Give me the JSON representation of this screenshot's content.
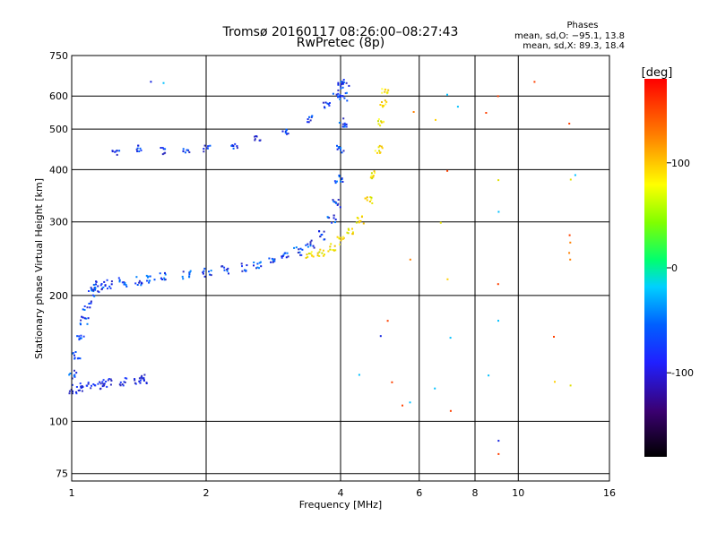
{
  "chart_data": {
    "type": "scatter",
    "title": "Tromsø 20160117 08:26:00–08:27:43",
    "subtitle": "RwPretec (8p)",
    "xlabel": "Frequency [MHz]",
    "ylabel": "Stationary phase Virtual Height [km]",
    "x_scale": "log",
    "y_scale": "log",
    "xlim": [
      1,
      16
    ],
    "ylim": [
      72,
      750
    ],
    "xticks": [
      1,
      2,
      4,
      6,
      8,
      10,
      16
    ],
    "xtick_labels": [
      "1",
      "2",
      "4",
      "6",
      "8",
      "10",
      "16"
    ],
    "yticks": [
      75,
      100,
      200,
      300,
      400,
      500,
      600,
      750
    ],
    "ytick_labels": [
      "75",
      "100",
      "200",
      "300",
      "400",
      "500",
      "600",
      "750"
    ],
    "grid": true,
    "colorbar": {
      "label": "[deg]",
      "range": [
        -180,
        180
      ],
      "ticks": [
        100,
        0,
        -100
      ],
      "tick_labels": [
        "100",
        "0",
        "-100"
      ]
    },
    "stats": {
      "heading": "Phases",
      "line_o": "mean, sd,O: −95.1, 13.8",
      "line_x": "mean, sd,X:  89.3, 18.4"
    },
    "o_trace_points": [
      [
        1.0,
        130
      ],
      [
        1.02,
        145
      ],
      [
        1.04,
        160
      ],
      [
        1.06,
        175
      ],
      [
        1.08,
        190
      ],
      [
        1.1,
        205
      ],
      [
        1.12,
        210
      ],
      [
        1.15,
        212
      ],
      [
        1.2,
        214
      ],
      [
        1.3,
        216
      ],
      [
        1.4,
        218
      ],
      [
        1.5,
        220
      ],
      [
        1.6,
        222
      ],
      [
        1.8,
        225
      ],
      [
        2.0,
        228
      ],
      [
        2.2,
        231
      ],
      [
        2.4,
        234
      ],
      [
        2.6,
        238
      ],
      [
        2.8,
        243
      ],
      [
        3.0,
        249
      ],
      [
        3.2,
        256
      ],
      [
        3.4,
        266
      ],
      [
        3.6,
        280
      ],
      [
        3.8,
        305
      ],
      [
        3.9,
        335
      ],
      [
        3.95,
        380
      ],
      [
        4.0,
        450
      ],
      [
        4.02,
        520
      ],
      [
        4.05,
        600
      ],
      [
        4.07,
        650
      ]
    ],
    "o_upper_trace_points": [
      [
        1.25,
        440
      ],
      [
        1.4,
        450
      ],
      [
        1.6,
        445
      ],
      [
        1.8,
        448
      ],
      [
        2.0,
        450
      ],
      [
        2.3,
        460
      ],
      [
        2.6,
        475
      ],
      [
        3.0,
        495
      ],
      [
        3.4,
        530
      ],
      [
        3.7,
        575
      ],
      [
        3.9,
        610
      ],
      [
        4.0,
        640
      ]
    ],
    "o_low_band_points": [
      [
        1.0,
        120
      ],
      [
        1.05,
        121
      ],
      [
        1.1,
        122
      ],
      [
        1.15,
        123
      ],
      [
        1.2,
        124
      ],
      [
        1.3,
        125
      ],
      [
        1.4,
        126
      ],
      [
        1.45,
        127
      ]
    ],
    "x_trace_points": [
      [
        3.4,
        250
      ],
      [
        3.6,
        255
      ],
      [
        3.8,
        262
      ],
      [
        4.0,
        272
      ],
      [
        4.2,
        285
      ],
      [
        4.4,
        305
      ],
      [
        4.6,
        340
      ],
      [
        4.75,
        390
      ],
      [
        4.85,
        450
      ],
      [
        4.9,
        520
      ],
      [
        4.95,
        580
      ],
      [
        5.0,
        620
      ]
    ],
    "scattered_points": [
      [
        1.5,
        650
      ],
      [
        1.6,
        650
      ],
      [
        5.8,
        550
      ],
      [
        6.5,
        530
      ],
      [
        6.9,
        610
      ],
      [
        7.3,
        570
      ],
      [
        8.4,
        550
      ],
      [
        9.0,
        600
      ],
      [
        10.8,
        650
      ],
      [
        12.9,
        520
      ],
      [
        13.4,
        390
      ],
      [
        13.0,
        380
      ],
      [
        6.9,
        400
      ],
      [
        9.0,
        380
      ],
      [
        9.0,
        320
      ],
      [
        6.7,
        300
      ],
      [
        13.0,
        280
      ],
      [
        13.0,
        270
      ],
      [
        13.0,
        255
      ],
      [
        13.0,
        245
      ],
      [
        5.7,
        245
      ],
      [
        6.9,
        220
      ],
      [
        9.0,
        215
      ],
      [
        9.0,
        175
      ],
      [
        7.0,
        160
      ],
      [
        5.1,
        175
      ],
      [
        4.9,
        160
      ],
      [
        12.0,
        160
      ],
      [
        8.5,
        130
      ],
      [
        4.4,
        130
      ],
      [
        5.2,
        125
      ],
      [
        5.5,
        110
      ],
      [
        5.7,
        112
      ],
      [
        6.5,
        120
      ],
      [
        7.0,
        106
      ],
      [
        12.0,
        125
      ],
      [
        13.0,
        122
      ],
      [
        9.0,
        90
      ],
      [
        9.0,
        84
      ]
    ]
  }
}
